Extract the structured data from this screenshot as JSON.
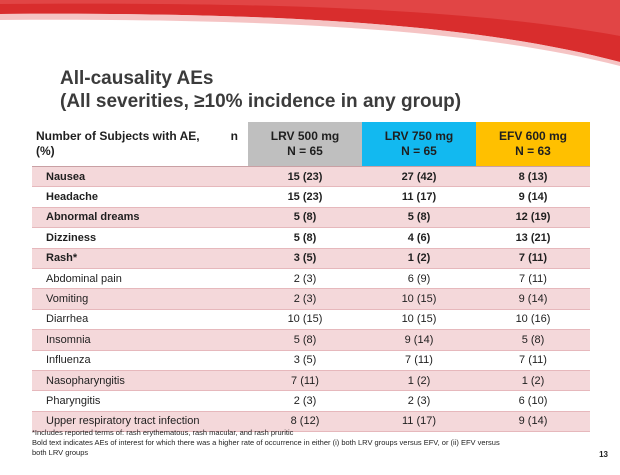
{
  "slide": {
    "title_line1": "All-causality AEs",
    "title_line2": "(All severities, ≥10% incidence in any group)",
    "page_number": "13"
  },
  "colors": {
    "lrv500": "#bfbfbf",
    "lrv750": "#12b9f0",
    "efv600": "#ffc000",
    "row_shade": "#f4d8da",
    "swoosh_red": "#d92d2d"
  },
  "table": {
    "header": {
      "label": "Number of Subjects with AE,",
      "label_n": "n",
      "label_pct": "(%)",
      "columns": [
        {
          "line1": "LRV 500 mg",
          "line2": "N = 65"
        },
        {
          "line1": "LRV 750 mg",
          "line2": "N = 65"
        },
        {
          "line1": "EFV 600 mg",
          "line2": "N = 63"
        }
      ]
    },
    "rows": [
      {
        "name": "Nausea",
        "v": [
          "15 (23)",
          "27 (42)",
          "8 (13)"
        ]
      },
      {
        "name": "Headache",
        "v": [
          "15 (23)",
          "11 (17)",
          "9 (14)"
        ]
      },
      {
        "name": "Abnormal dreams",
        "v": [
          "5 (8)",
          "5 (8)",
          "12 (19)"
        ]
      },
      {
        "name": "Dizziness",
        "v": [
          "5 (8)",
          "4 (6)",
          "13 (21)"
        ]
      },
      {
        "name": "Rash*",
        "v": [
          "3 (5)",
          "1 (2)",
          "7 (11)"
        ]
      },
      {
        "name": "Abdominal pain",
        "v": [
          "2 (3)",
          "6 (9)",
          "7 (11)"
        ]
      },
      {
        "name": "Vomiting",
        "v": [
          "2 (3)",
          "10 (15)",
          "9 (14)"
        ]
      },
      {
        "name": "Diarrhea",
        "v": [
          "10 (15)",
          "10 (15)",
          "10 (16)"
        ]
      },
      {
        "name": "Insomnia",
        "v": [
          "5 (8)",
          "9 (14)",
          "5 (8)"
        ]
      },
      {
        "name": "Influenza",
        "v": [
          "3 (5)",
          "7 (11)",
          "7 (11)"
        ]
      },
      {
        "name": "Nasopharyngitis",
        "v": [
          "7 (11)",
          "1 (2)",
          "1 (2)"
        ]
      },
      {
        "name": "Pharyngitis",
        "v": [
          "2 (3)",
          "2 (3)",
          "6 (10)"
        ]
      },
      {
        "name": "Upper respiratory tract  infection",
        "v": [
          "8 (12)",
          "11 (17)",
          "9 (14)"
        ]
      }
    ]
  },
  "footnote": {
    "line1": "*Includes reported terms of: rash erythematous, rash macular, and rash pruritic",
    "line2": "Bold text indicates AEs  of interest for which there was a higher rate of occurrence in either (i) both LRV groups versus EFV, or (ii) EFV versus",
    "line3": "both LRV groups"
  }
}
